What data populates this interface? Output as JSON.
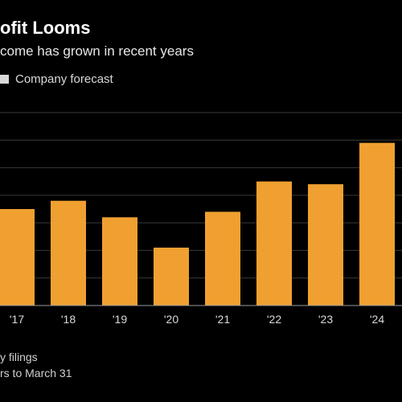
{
  "header": {
    "title": "ofit Looms",
    "subtitle": "come has grown in recent years",
    "legend_label": "Company forecast"
  },
  "footer": {
    "source": "y filings",
    "note": "rs to March 31"
  },
  "colors": {
    "bar": "#F0A030",
    "background": "#000000",
    "grid": "#3a3a3a",
    "legend_swatch": "#d9d9d9"
  },
  "chart_data": {
    "type": "bar",
    "categories": [
      "'17",
      "'18",
      "'19",
      "'20",
      "'21",
      "'22",
      "'23",
      "'24"
    ],
    "values": [
      3.5,
      3.8,
      3.2,
      2.1,
      3.4,
      4.5,
      4.4,
      5.9
    ],
    "ylim": [
      0,
      7
    ],
    "grid": true,
    "legend": "top-left"
  }
}
